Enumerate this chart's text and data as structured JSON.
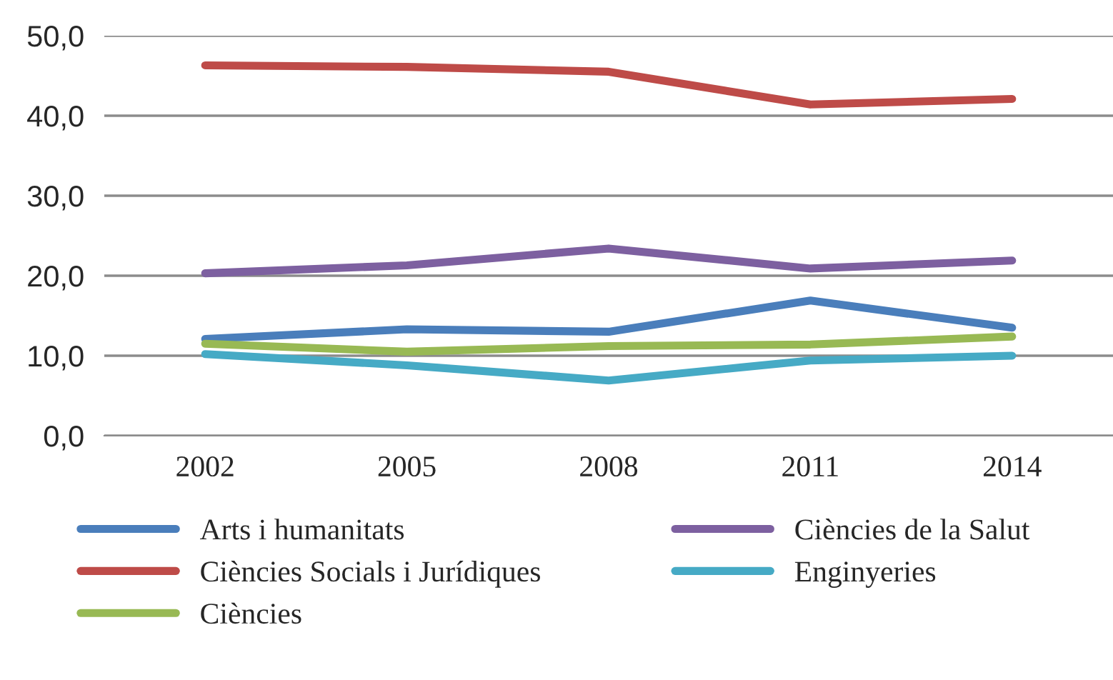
{
  "chart_data": {
    "type": "line",
    "categories": [
      "2002",
      "2005",
      "2008",
      "2011",
      "2014"
    ],
    "ylim": [
      0,
      50
    ],
    "yticks": [
      {
        "value": 0,
        "label": "0,0"
      },
      {
        "value": 10,
        "label": "10,0"
      },
      {
        "value": 20,
        "label": "20,0"
      },
      {
        "value": 30,
        "label": "30,0"
      },
      {
        "value": 40,
        "label": "40,0"
      },
      {
        "value": 50,
        "label": "50,0"
      }
    ],
    "grid": "y",
    "legend": "bottom",
    "marker": "none",
    "line_style": "solid",
    "series": [
      {
        "name": "Arts i humanitats",
        "color": "#4a7ebb",
        "values": [
          12.1,
          13.3,
          13.0,
          16.9,
          13.5
        ]
      },
      {
        "name": "Ciències Socials i Jurídiques",
        "color": "#be4b48",
        "values": [
          46.3,
          46.1,
          45.5,
          41.4,
          42.1
        ]
      },
      {
        "name": "Ciències",
        "color": "#98b954",
        "values": [
          11.5,
          10.5,
          11.2,
          11.4,
          12.4
        ]
      },
      {
        "name": "Ciències de la Salut",
        "color": "#7d60a0",
        "values": [
          20.3,
          21.3,
          23.4,
          20.9,
          21.9
        ]
      },
      {
        "name": "Enginyeries",
        "color": "#46aac5",
        "values": [
          10.2,
          8.8,
          6.9,
          9.4,
          10.0
        ]
      }
    ]
  }
}
